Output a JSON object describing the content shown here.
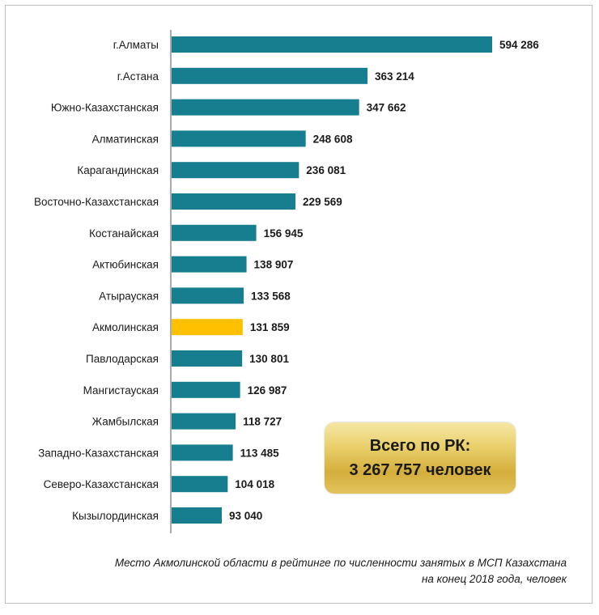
{
  "chart_data": {
    "type": "bar",
    "orientation": "horizontal",
    "categories": [
      "г.Алматы",
      "г.Астана",
      "Южно-Казахстанская",
      "Алматинская",
      "Карагандинская",
      "Восточно-Казахстанская",
      "Костанайская",
      "Актюбинская",
      "Атырауская",
      "Акмолинская",
      "Павлодарская",
      "Мангистауская",
      "Жамбылская",
      "Западно-Казахстанская",
      "Северо-Казахстанская",
      "Кызылординская"
    ],
    "values": [
      594286,
      363214,
      347662,
      248608,
      236081,
      229569,
      156945,
      138907,
      133568,
      131859,
      130801,
      126987,
      118727,
      113485,
      104018,
      93040
    ],
    "value_labels": [
      "594 286",
      "363 214",
      "347 662",
      "248 608",
      "236 081",
      "229 569",
      "156 945",
      "138 907",
      "133 568",
      "131 859",
      "130 801",
      "126 987",
      "118 727",
      "113 485",
      "104 018",
      "93 040"
    ],
    "highlight_category": "Акмолинская",
    "xlim": [
      0,
      600000
    ],
    "grid": false,
    "legend": "none",
    "colors": {
      "bar": "#177e8f",
      "highlight": "#ffc000",
      "axis": "#595959"
    }
  },
  "total_box": {
    "line1": "Всего по РК:",
    "line2": "3 267 757 человек",
    "color": "#e5c75e"
  },
  "caption": {
    "line1": "Место Акмолинской области в рейтинге по численности занятых в МСП Казахстана",
    "line2": "на конец 2018  года, человек"
  }
}
